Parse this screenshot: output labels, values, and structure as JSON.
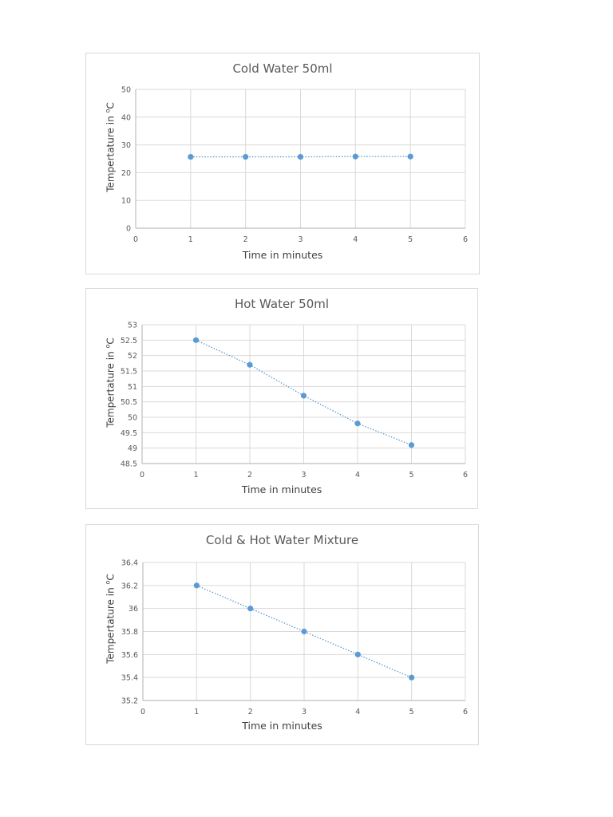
{
  "charts": [
    {
      "title": "Cold Water 50ml",
      "xlabel": "Time in minutes",
      "ylabel_main": "Tempertature in ",
      "ylabel_sup": "o",
      "ylabel_unit": "C"
    },
    {
      "title": "Hot Water 50ml",
      "xlabel": "Time in minutes",
      "ylabel_main": "Tempertature in ",
      "ylabel_sup": "o",
      "ylabel_unit": "C"
    },
    {
      "title": "Cold & Hot Water Mixture",
      "xlabel": "Time in minutes",
      "ylabel_main": "Tempertature in ",
      "ylabel_sup": "o",
      "ylabel_unit": "C"
    }
  ],
  "colors": {
    "series": "#5b9bd5",
    "grid": "#d9d9d9",
    "axis_text": "#595959"
  },
  "chart_data": [
    {
      "type": "scatter",
      "title": "Cold Water 50ml",
      "xlabel": "Time in minutes",
      "ylabel": "Tempertature in oC",
      "x": [
        1,
        2,
        3,
        4,
        5
      ],
      "series": [
        {
          "name": "Cold Water 50ml",
          "values": [
            25.7,
            25.7,
            25.7,
            25.8,
            25.8
          ]
        }
      ],
      "xlim": [
        0,
        6
      ],
      "ylim": [
        0,
        50
      ],
      "xticks": [
        0,
        1,
        2,
        3,
        4,
        5,
        6
      ],
      "yticks": [
        0,
        10,
        20,
        30,
        40,
        50
      ],
      "grid": true,
      "legend": "none",
      "line_style": "dotted"
    },
    {
      "type": "scatter",
      "title": "Hot Water 50ml",
      "xlabel": "Time in minutes",
      "ylabel": "Tempertature in oC",
      "x": [
        1,
        2,
        3,
        4,
        5
      ],
      "series": [
        {
          "name": "Hot Water 50ml",
          "values": [
            52.5,
            51.7,
            50.7,
            49.8,
            49.1
          ]
        }
      ],
      "xlim": [
        0,
        6
      ],
      "ylim": [
        48.5,
        53
      ],
      "xticks": [
        0,
        1,
        2,
        3,
        4,
        5,
        6
      ],
      "yticks": [
        48.5,
        49,
        49.5,
        50,
        50.5,
        51,
        51.5,
        52,
        52.5,
        53
      ],
      "grid": true,
      "legend": "none",
      "line_style": "dotted"
    },
    {
      "type": "scatter",
      "title": "Cold & Hot Water Mixture",
      "xlabel": "Time in minutes",
      "ylabel": "Tempertature in oC",
      "x": [
        1,
        2,
        3,
        4,
        5
      ],
      "series": [
        {
          "name": "Cold & Hot Water Mixture",
          "values": [
            36.2,
            36.0,
            35.8,
            35.6,
            35.4
          ]
        }
      ],
      "xlim": [
        0,
        6
      ],
      "ylim": [
        35.2,
        36.4
      ],
      "xticks": [
        0,
        1,
        2,
        3,
        4,
        5,
        6
      ],
      "yticks": [
        35.2,
        35.4,
        35.6,
        35.8,
        36,
        36.2,
        36.4
      ],
      "grid": true,
      "legend": "none",
      "line_style": "dotted"
    }
  ]
}
